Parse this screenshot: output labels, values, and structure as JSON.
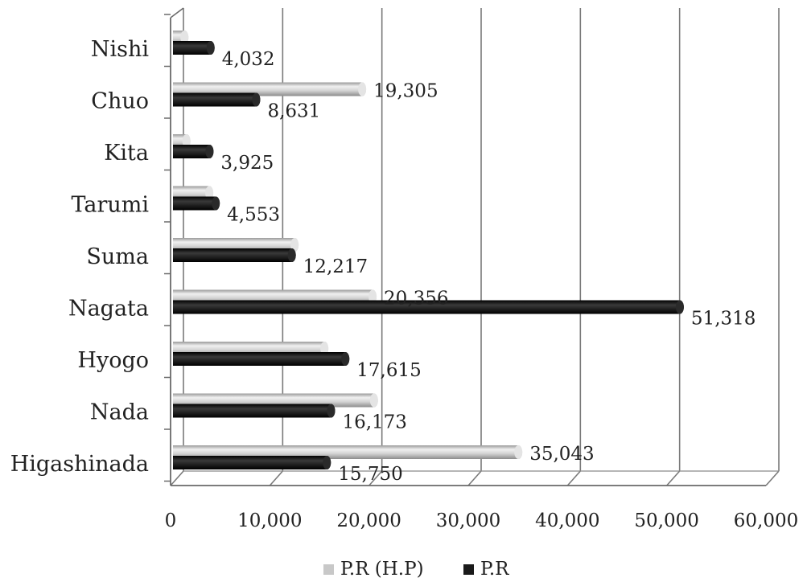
{
  "chart_data": {
    "type": "bar",
    "orientation": "horizontal",
    "style": "3d-cylinder",
    "title": "",
    "xlabel": "",
    "ylabel": "",
    "categories": [
      "Nishi",
      "Chuo",
      "Kita",
      "Tarumi",
      "Suma",
      "Nagata",
      "Hyogo",
      "Nada",
      "Higashinada"
    ],
    "series": [
      {
        "name": "P.R (H.P)",
        "color": "#c8c8c8",
        "values": [
          1400,
          19305,
          1600,
          3900,
          12500,
          20356,
          15500,
          20500,
          35043
        ],
        "labels": [
          "",
          "19,305",
          "",
          "",
          "",
          "20,356",
          "",
          "",
          "35,043"
        ]
      },
      {
        "name": "P.R",
        "color": "#1a1a1a",
        "values": [
          4032,
          8631,
          3925,
          4553,
          12217,
          51318,
          17615,
          16173,
          15750
        ],
        "labels": [
          "4,032",
          "8,631",
          "3,925",
          "4,553",
          "12,217",
          "51,318",
          "17,615",
          "16,173",
          "15,750"
        ]
      }
    ],
    "xlim": [
      0,
      60000
    ],
    "xticks": [
      0,
      10000,
      20000,
      30000,
      40000,
      50000,
      60000
    ],
    "xtick_labels": [
      "0",
      "10,000",
      "20,000",
      "30,000",
      "40,000",
      "50,000",
      "60,000"
    ],
    "grid": "vertical",
    "legend_position": "bottom"
  }
}
